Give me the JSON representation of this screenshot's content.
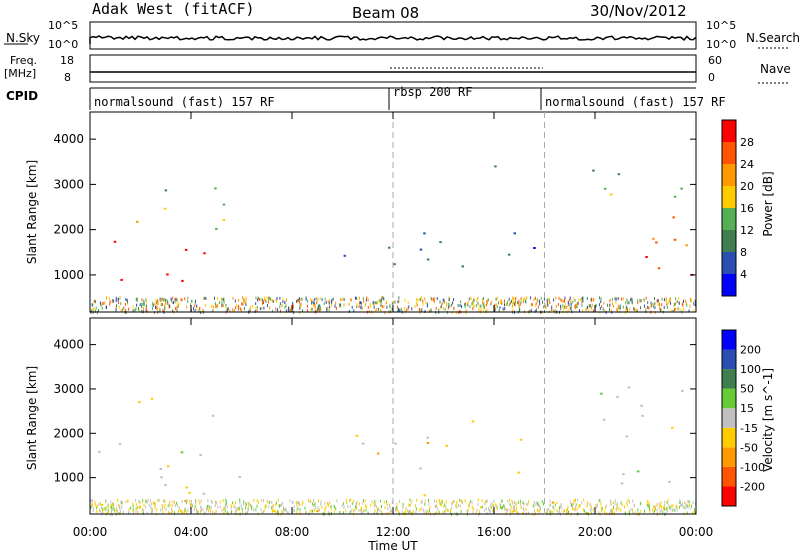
{
  "header": {
    "station": "Adak West (fitACF)",
    "beam": "Beam 08",
    "date": "30/Nov/2012"
  },
  "strip_noise": {
    "left_label": "N.Sky",
    "left_ticks": [
      "10^5",
      "10^0"
    ],
    "right_ticks": [
      "10^5",
      "10^0"
    ],
    "right_label": "N.Search"
  },
  "strip_freq": {
    "left_label_1": "Freq.",
    "left_label_2": "[MHz]",
    "left_ticks": [
      "18",
      "8"
    ],
    "right_ticks": [
      "60",
      "0"
    ],
    "right_label": "Nave"
  },
  "cpid": {
    "label": "CPID",
    "segments": [
      {
        "name": "normalsound (fast) 157 RF",
        "start": 0,
        "end": 12
      },
      {
        "name": "rbsp 200 RF",
        "start": 12,
        "end": 18
      },
      {
        "name": "normalsound (fast) 157 RF",
        "start": 18,
        "end": 24
      }
    ]
  },
  "colors": {
    "power": [
      "#0000ff",
      "#2a4fb0",
      "#3f7f4f",
      "#55b055",
      "#ffcc00",
      "#ff9900",
      "#ff5500",
      "#ff0000"
    ],
    "velocity": [
      "#ff0000",
      "#ff5500",
      "#ff9900",
      "#ffcc00",
      "#c0c0c0",
      "#66cc33",
      "#3f7f4f",
      "#2a4fb0",
      "#0000ff"
    ]
  },
  "chart_data": [
    {
      "type": "heatmap",
      "ylabel": "Slant Range [km]",
      "xlabel": "Time UT",
      "x_ticks": [
        "00:00",
        "04:00",
        "08:00",
        "12:00",
        "16:00",
        "20:00",
        "00:00"
      ],
      "x_range_hours": [
        0,
        24
      ],
      "y_ticks": [
        1000,
        2000,
        3000,
        4000
      ],
      "ylim": [
        180,
        4600
      ],
      "colorbar_label": "Power [dB]",
      "colorbar_ticks": [
        4,
        8,
        12,
        16,
        20,
        24,
        28
      ],
      "colorbar_range": [
        0,
        32
      ],
      "regions": [
        {
          "t0": 0.2,
          "t1": 4.5,
          "r0": 650,
          "r1": 1900,
          "level": 30
        },
        {
          "t0": 0.2,
          "t1": 6.0,
          "r0": 1900,
          "r1": 2700,
          "level": 18
        },
        {
          "t0": 2.0,
          "t1": 5.0,
          "r0": 2700,
          "r1": 3200,
          "level": 10
        },
        {
          "t0": 10.0,
          "t1": 18.0,
          "r0": 1100,
          "r1": 2300,
          "level": 8
        },
        {
          "t0": 19.5,
          "t1": 24.0,
          "r0": 700,
          "r1": 2300,
          "level": 28
        },
        {
          "t0": 19.5,
          "t1": 24.0,
          "r0": 2300,
          "r1": 3400,
          "level": 14
        },
        {
          "t0": 16.0,
          "t1": 17.0,
          "r0": 3000,
          "r1": 4300,
          "level": 8
        }
      ]
    },
    {
      "type": "heatmap",
      "ylabel": "Slant Range [km]",
      "xlabel": "Time UT",
      "x_ticks": [
        "00:00",
        "04:00",
        "08:00",
        "12:00",
        "16:00",
        "20:00",
        "00:00"
      ],
      "x_range_hours": [
        0,
        24
      ],
      "y_ticks": [
        1000,
        2000,
        3000,
        4000
      ],
      "ylim": [
        180,
        4600
      ],
      "colorbar_label": "Velocity [m s^-1]",
      "colorbar_ticks": [
        -200,
        -100,
        -50,
        -15,
        15,
        50,
        100,
        200
      ],
      "regions": [
        {
          "t0": 0.2,
          "t1": 6.0,
          "r0": 650,
          "r1": 2900,
          "velocity": 0
        },
        {
          "t0": 10.0,
          "t1": 18.0,
          "r0": 1100,
          "r1": 2300,
          "velocity": -30
        },
        {
          "t0": 19.5,
          "t1": 24.0,
          "r0": 700,
          "r1": 3200,
          "velocity": 0
        },
        {
          "t0": 0.0,
          "t1": 24.0,
          "r0": 180,
          "r1": 650,
          "velocity": -30
        }
      ]
    }
  ]
}
